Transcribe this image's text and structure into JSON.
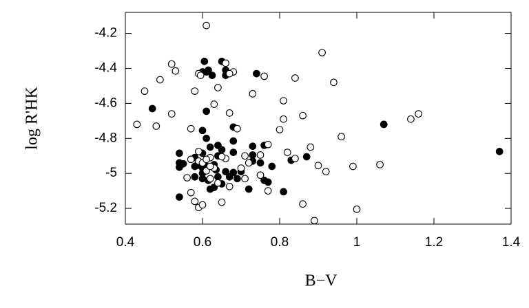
{
  "chart_data": {
    "type": "scatter",
    "x_label": "B−V",
    "y_label": "log R'HK",
    "xlim": [
      0.4,
      1.4
    ],
    "xticks": [
      0.4,
      0.6,
      0.8,
      1,
      1.2,
      1.4
    ],
    "ylim": [
      -5.29,
      -4.08
    ],
    "yticks": [
      -4.2,
      -4.4,
      -4.6,
      -4.8,
      -5,
      -5.2
    ],
    "grid": false,
    "series": [
      {
        "color": "#000000",
        "filled": true,
        "x": [
          0.605,
          0.61,
          0.6,
          0.615,
          0.65,
          0.66,
          0.625,
          0.66,
          0.74,
          0.47,
          0.61,
          0.68,
          0.6,
          0.61,
          0.64,
          0.62,
          0.54,
          0.58,
          0.6,
          0.65,
          0.68,
          0.73,
          0.73,
          0.75,
          0.76,
          0.83,
          0.87,
          0.73,
          0.54,
          0.585,
          0.61,
          0.63,
          0.6,
          0.58,
          0.615,
          0.635,
          0.66,
          0.55,
          0.6,
          0.63,
          0.62,
          0.67,
          0.69,
          0.72,
          0.76,
          0.77,
          0.78,
          0.81,
          0.54,
          0.68,
          0.6,
          0.58,
          1.07,
          1.37,
          0.64,
          0.65,
          0.7,
          0.64,
          0.54,
          0.68
        ],
        "values": [
          -4.36,
          -4.42,
          -4.42,
          -4.41,
          -4.36,
          -4.41,
          -4.44,
          -4.44,
          -4.43,
          -4.63,
          -4.645,
          -4.735,
          -4.755,
          -4.8,
          -4.84,
          -4.85,
          -4.885,
          -4.91,
          -4.885,
          -4.865,
          -4.815,
          -4.845,
          -4.895,
          -4.94,
          -4.84,
          -4.925,
          -4.905,
          -4.93,
          -4.94,
          -4.955,
          -4.96,
          -4.95,
          -5.0,
          -5.02,
          -5.04,
          -4.98,
          -4.99,
          -4.945,
          -5.03,
          -5.08,
          -5.09,
          -5.02,
          -5.03,
          -5.09,
          -5.04,
          -5.05,
          -4.96,
          -5.105,
          -5.135,
          -4.995,
          -4.97,
          -4.96,
          -4.72,
          -4.875,
          -5.02,
          -5.06,
          -4.99,
          -4.9,
          -4.965,
          -4.88
        ]
      },
      {
        "color": "#000000",
        "filled": false,
        "x": [
          0.61,
          0.91,
          0.52,
          0.53,
          0.66,
          0.59,
          0.595,
          0.68,
          0.67,
          0.76,
          0.84,
          0.49,
          0.94,
          0.64,
          0.45,
          0.58,
          0.73,
          0.81,
          0.63,
          0.52,
          0.67,
          0.86,
          0.81,
          1.16,
          1.14,
          0.43,
          0.48,
          0.69,
          0.57,
          0.8,
          0.96,
          0.77,
          0.88,
          0.59,
          0.82,
          0.75,
          0.71,
          0.84,
          0.57,
          0.62,
          0.66,
          0.65,
          0.72,
          0.59,
          0.9,
          0.99,
          1.06,
          0.92,
          0.7,
          0.63,
          0.61,
          0.75,
          0.56,
          0.62,
          0.71,
          0.64,
          0.67,
          0.77,
          0.57,
          0.58,
          0.59,
          0.6,
          0.65,
          0.86,
          1.0,
          0.89,
          0.6,
          0.62,
          0.61
        ],
        "values": [
          -4.155,
          -4.31,
          -4.375,
          -4.415,
          -4.37,
          -4.43,
          -4.44,
          -4.42,
          -4.43,
          -4.445,
          -4.455,
          -4.465,
          -4.48,
          -4.51,
          -4.53,
          -4.53,
          -4.545,
          -4.585,
          -4.605,
          -4.66,
          -4.655,
          -4.67,
          -4.69,
          -4.66,
          -4.69,
          -4.72,
          -4.73,
          -4.745,
          -4.745,
          -4.75,
          -4.79,
          -4.835,
          -4.85,
          -4.875,
          -4.88,
          -4.895,
          -4.9,
          -4.915,
          -4.92,
          -4.91,
          -4.915,
          -4.905,
          -4.94,
          -4.93,
          -4.955,
          -4.96,
          -4.95,
          -4.99,
          -4.97,
          -4.97,
          -4.985,
          -5.01,
          -5.025,
          -5.03,
          -5.03,
          -5.055,
          -5.075,
          -5.1,
          -5.11,
          -5.16,
          -5.195,
          -5.18,
          -5.165,
          -5.175,
          -5.205,
          -5.27,
          -4.94,
          -4.96,
          -4.92
        ]
      }
    ]
  }
}
